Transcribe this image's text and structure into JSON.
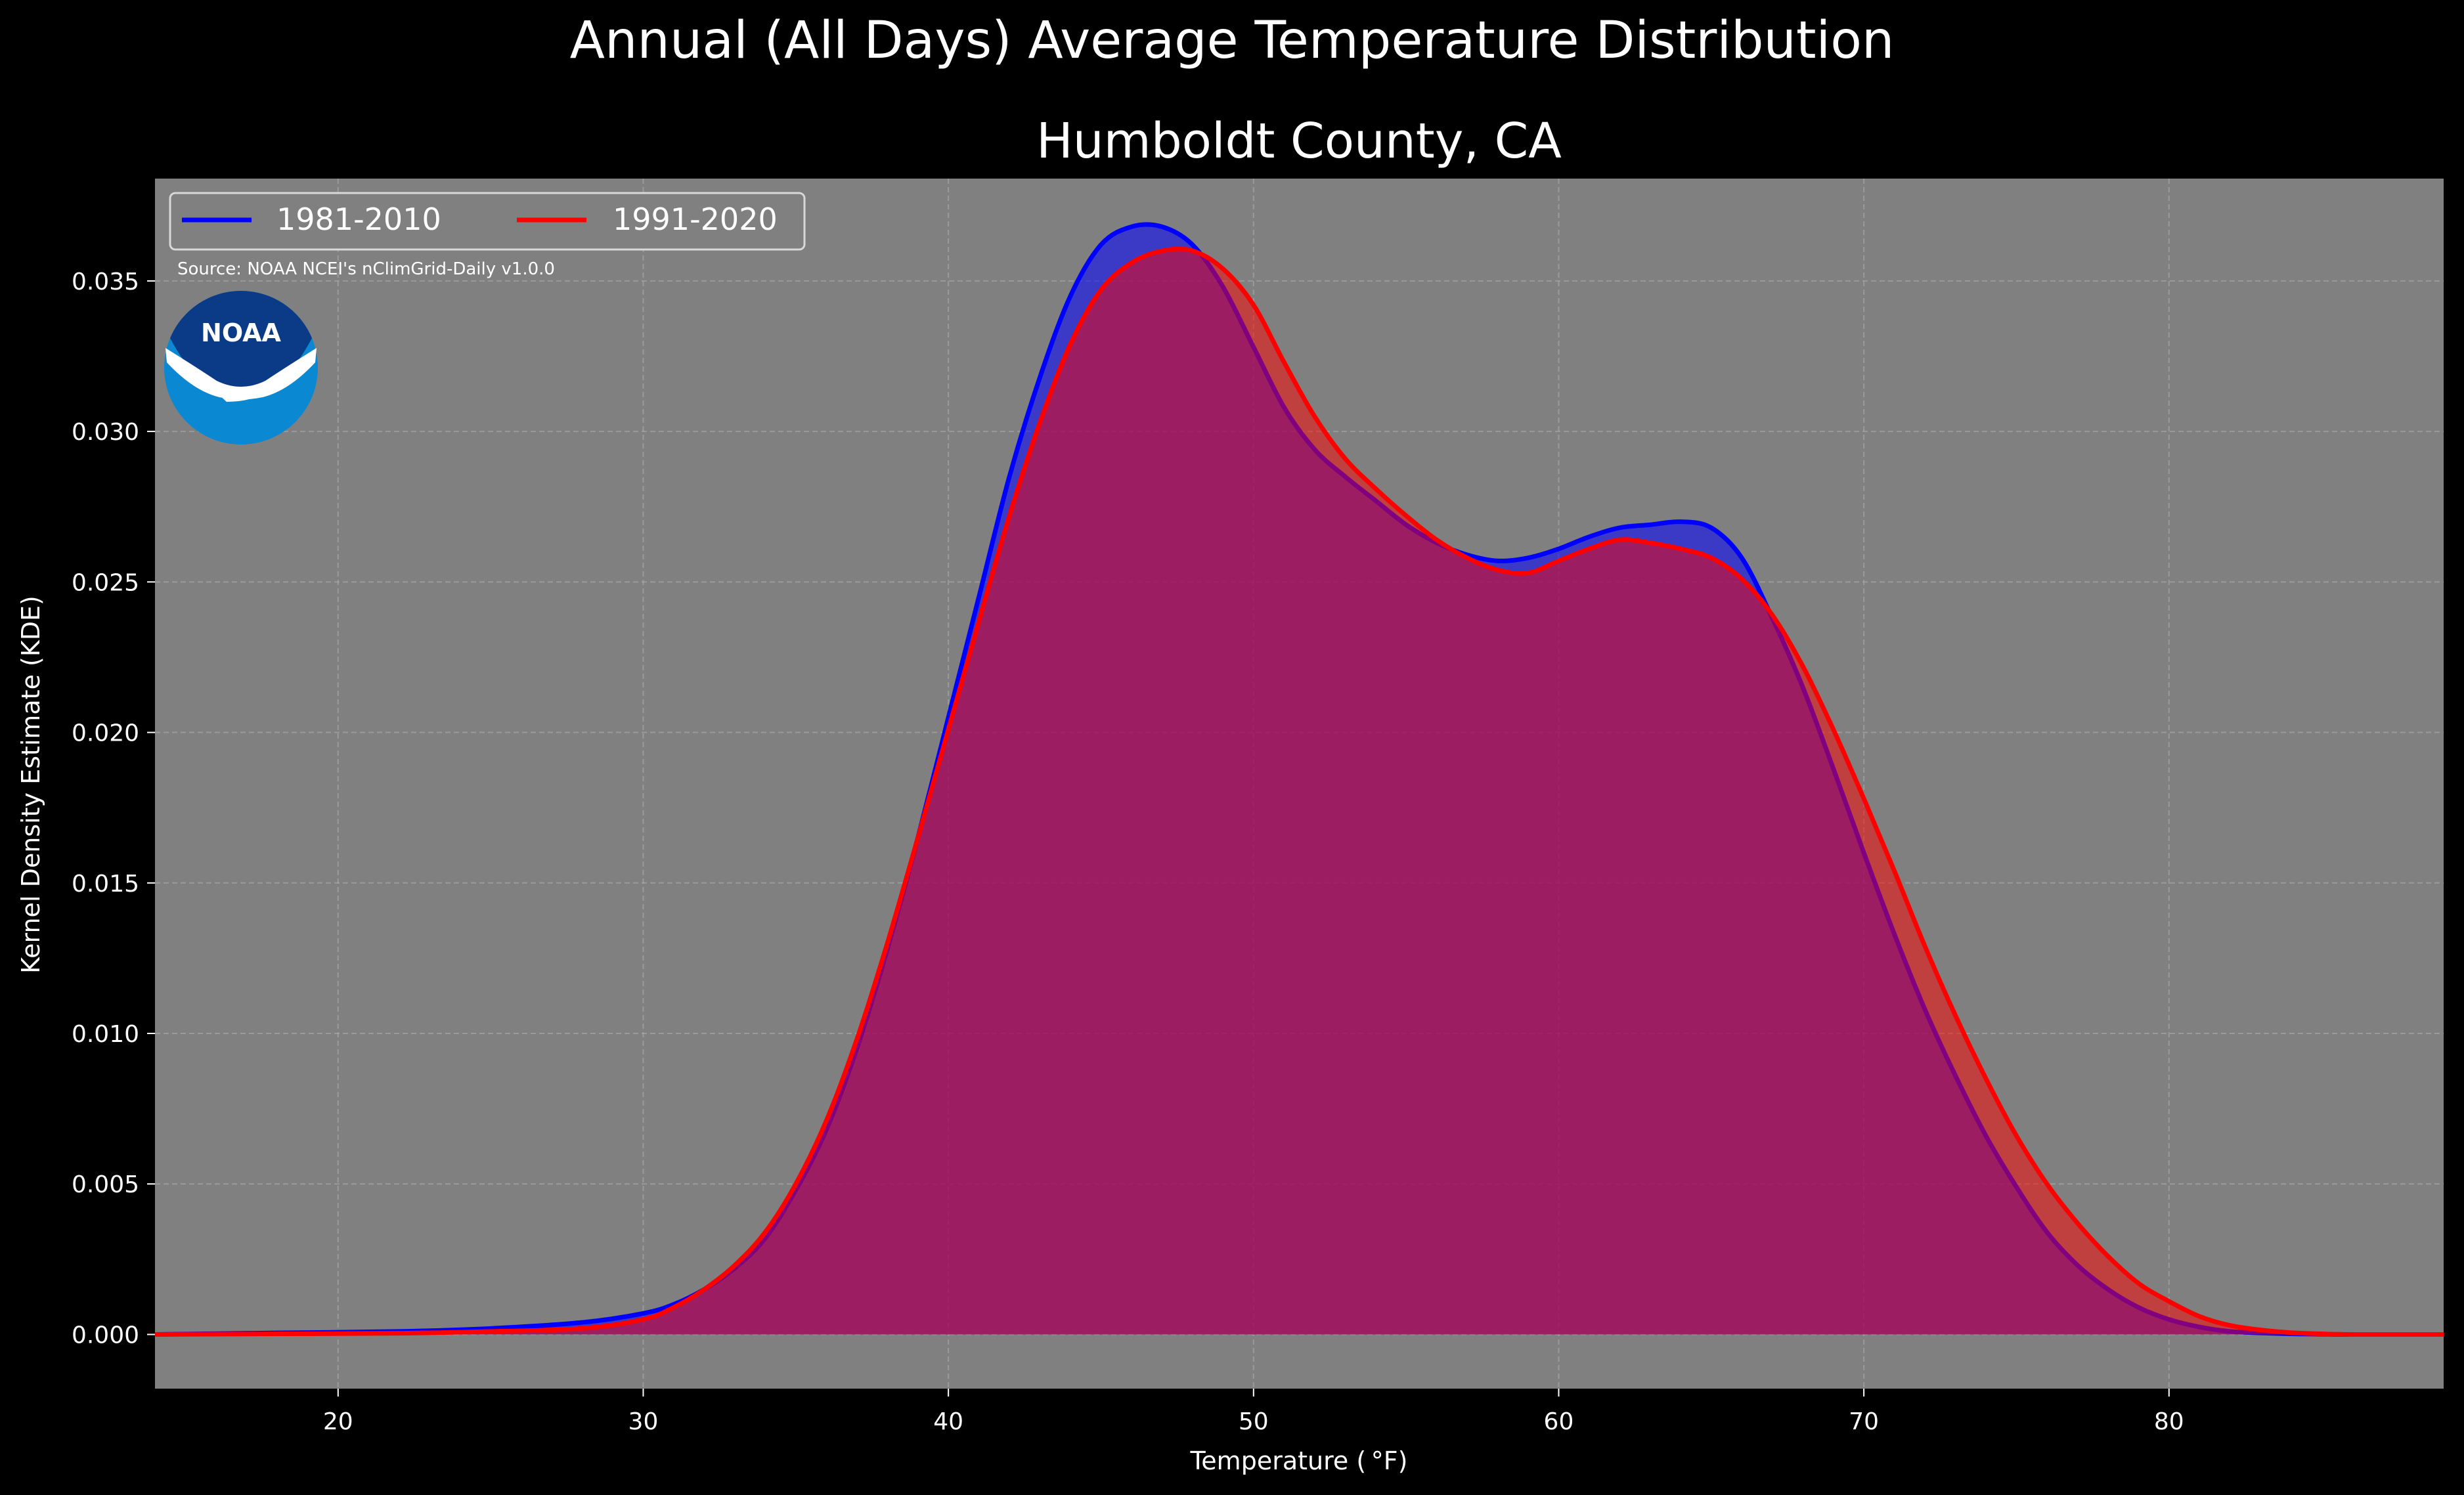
{
  "figure": {
    "suptitle": "Annual (All Days) Average Temperature Distribution",
    "source_note": "Source: NOAA NCEI's nClimGrid-Daily v1.0.0",
    "logo_text": "NOAA",
    "background_color": "#000000",
    "plot_background_color": "#808080"
  },
  "chart_data": {
    "type": "area",
    "title": "Humboldt County, CA",
    "xlabel": "Temperature ( °F)",
    "ylabel": "Kernel Density Estimate (KDE)",
    "xlim": [
      14,
      89
    ],
    "ylim": [
      -0.0018,
      0.0384
    ],
    "xticks": [
      20,
      30,
      40,
      50,
      60,
      70,
      80
    ],
    "yticks": [
      0.0,
      0.005,
      0.01,
      0.015,
      0.02,
      0.025,
      0.03,
      0.035
    ],
    "ytick_labels": [
      "0.000",
      "0.005",
      "0.010",
      "0.015",
      "0.020",
      "0.025",
      "0.030",
      "0.035"
    ],
    "grid": true,
    "legend_position": "top-left",
    "legend_columns": 2,
    "series": [
      {
        "name": "1981-2010",
        "color": "#0000ff",
        "fill_color": "#0000ff",
        "x": [
          14,
          18,
          22,
          25,
          28,
          30,
          31,
          32,
          33,
          34,
          35,
          36,
          37,
          38,
          39,
          40,
          41,
          42,
          43,
          44,
          45,
          46,
          47,
          48,
          49,
          50,
          51,
          52,
          53,
          54,
          55,
          56,
          57,
          58,
          59,
          60,
          61,
          62,
          63,
          64,
          65,
          66,
          67,
          68,
          69,
          70,
          71,
          72,
          73,
          74,
          75,
          76,
          77,
          78,
          79,
          80,
          81,
          82,
          83,
          84,
          85,
          86,
          89
        ],
        "y": [
          0.0,
          5e-05,
          0.0001,
          0.0002,
          0.0004,
          0.0007,
          0.001,
          0.0015,
          0.0022,
          0.0032,
          0.0048,
          0.0068,
          0.0095,
          0.0128,
          0.0165,
          0.0205,
          0.0245,
          0.0285,
          0.0318,
          0.0345,
          0.0362,
          0.0368,
          0.0368,
          0.0362,
          0.0348,
          0.0328,
          0.0308,
          0.0294,
          0.0285,
          0.0277,
          0.0269,
          0.0263,
          0.0259,
          0.0257,
          0.0258,
          0.0261,
          0.0265,
          0.0268,
          0.0269,
          0.027,
          0.0268,
          0.0258,
          0.0238,
          0.0215,
          0.0188,
          0.016,
          0.0133,
          0.0108,
          0.0086,
          0.0066,
          0.0049,
          0.0034,
          0.0023,
          0.0015,
          0.0009,
          0.0005,
          0.00025,
          0.0001,
          5e-05,
          2e-05,
          1e-05,
          0.0,
          0.0
        ]
      },
      {
        "name": "1991-2020",
        "color": "#ff0000",
        "fill_color": "#ff0000",
        "x": [
          14,
          18,
          22,
          25,
          28,
          30,
          31,
          32,
          33,
          34,
          35,
          36,
          37,
          38,
          39,
          40,
          41,
          42,
          43,
          44,
          45,
          46,
          47,
          48,
          49,
          50,
          51,
          52,
          53,
          54,
          55,
          56,
          57,
          58,
          59,
          60,
          61,
          62,
          63,
          64,
          65,
          66,
          67,
          68,
          69,
          70,
          71,
          72,
          73,
          74,
          75,
          76,
          77,
          78,
          79,
          80,
          81,
          82,
          83,
          84,
          85,
          86,
          89
        ],
        "y": [
          0.0,
          2e-05,
          4e-05,
          0.0001,
          0.0002,
          0.0005,
          0.0009,
          0.0015,
          0.0023,
          0.0034,
          0.005,
          0.0071,
          0.0098,
          0.013,
          0.0165,
          0.0201,
          0.0237,
          0.0272,
          0.0303,
          0.0329,
          0.0347,
          0.0356,
          0.036,
          0.036,
          0.0354,
          0.0342,
          0.0323,
          0.0305,
          0.0291,
          0.0281,
          0.0272,
          0.0264,
          0.0258,
          0.0254,
          0.0253,
          0.0257,
          0.0261,
          0.0264,
          0.0263,
          0.0261,
          0.0258,
          0.0251,
          0.0239,
          0.0222,
          0.0201,
          0.0178,
          0.0154,
          0.0129,
          0.0106,
          0.0085,
          0.0066,
          0.005,
          0.0037,
          0.0026,
          0.0017,
          0.0011,
          0.0006,
          0.0003,
          0.00015,
          6e-05,
          2e-05,
          0.0,
          0.0
        ]
      }
    ]
  }
}
